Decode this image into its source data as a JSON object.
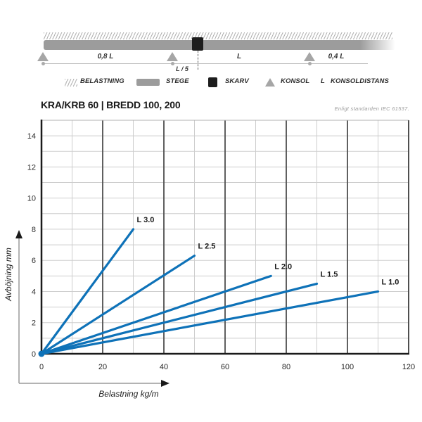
{
  "schematic": {
    "dim_labels": {
      "span_left": "0,8 L",
      "span_mid": "L",
      "span_right": "0,4 L",
      "joint": "L / 5"
    }
  },
  "legend": {
    "items": [
      {
        "icon": "load-hatch-icon",
        "label": "BELASTNING"
      },
      {
        "icon": "ladder-icon",
        "label": "STEGE"
      },
      {
        "icon": "joint-icon",
        "label": "SKARV"
      },
      {
        "icon": "bracket-icon",
        "label": "KONSOL"
      },
      {
        "icon": "distance-symbol",
        "symbol": "L",
        "label": "KONSOLDISTANS"
      }
    ]
  },
  "header": {
    "title": "KRA/KRB 60 | BREDD 100, 200",
    "standard_note": "Enligt standarden IEC 61537."
  },
  "chart_data": {
    "type": "line",
    "title": "KRA/KRB 60 | BREDD 100, 200",
    "xlabel": "Belastning kg/m",
    "ylabel": "Avböjning mm",
    "xlim": [
      0,
      120
    ],
    "ylim": [
      0,
      15
    ],
    "x_ticks": [
      0,
      20,
      40,
      60,
      80,
      100,
      120
    ],
    "y_ticks": [
      0,
      2,
      4,
      6,
      8,
      10,
      12,
      14
    ],
    "grid": "on",
    "line_color": "#0e72b8",
    "series": [
      {
        "name": "L 3.0",
        "x": [
          0,
          30
        ],
        "y": [
          0,
          8
        ]
      },
      {
        "name": "L 2.5",
        "x": [
          0,
          50
        ],
        "y": [
          0,
          6.3
        ]
      },
      {
        "name": "L 2.0",
        "x": [
          0,
          75
        ],
        "y": [
          0,
          5
        ]
      },
      {
        "name": "L 1.5",
        "x": [
          0,
          90
        ],
        "y": [
          0,
          4.5
        ]
      },
      {
        "name": "L 1.0",
        "x": [
          0,
          110
        ],
        "y": [
          0,
          4
        ]
      }
    ]
  }
}
